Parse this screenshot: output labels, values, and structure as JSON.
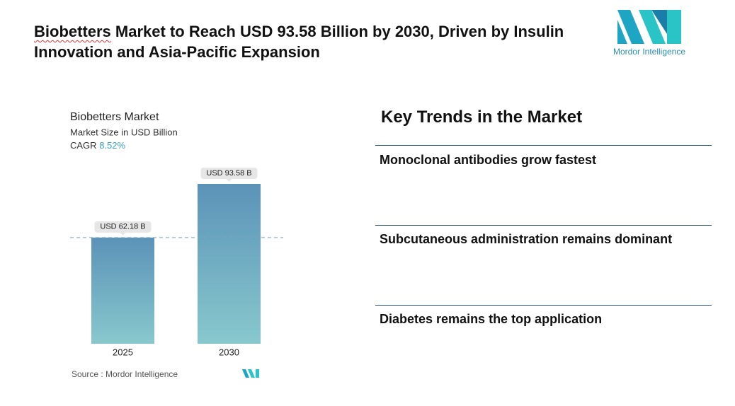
{
  "header": {
    "title_first": "Biobetters",
    "title_rest": "Market to Reach USD 93.58 Billion by 2030, Driven by Insulin Innovation and Asia-Pacific Expansion",
    "logo_text": "Mordor Intelligence"
  },
  "chart_data": {
    "type": "bar",
    "title": "Biobetters Market",
    "subtitle": "Market Size in USD Billion",
    "cagr_label": "CAGR",
    "cagr_value": "8.52%",
    "categories": [
      "2025",
      "2030"
    ],
    "values": [
      62.18,
      93.58
    ],
    "value_labels": [
      "USD 62.18 B",
      "USD 93.58 B"
    ],
    "source": "Source :  Mordor Intelligence"
  },
  "trends": {
    "heading": "Key Trends in the Market",
    "items": [
      "Monoclonal antibodies grow fastest",
      "Subcutaneous administration remains dominant",
      "Diabetes remains the top application"
    ]
  }
}
